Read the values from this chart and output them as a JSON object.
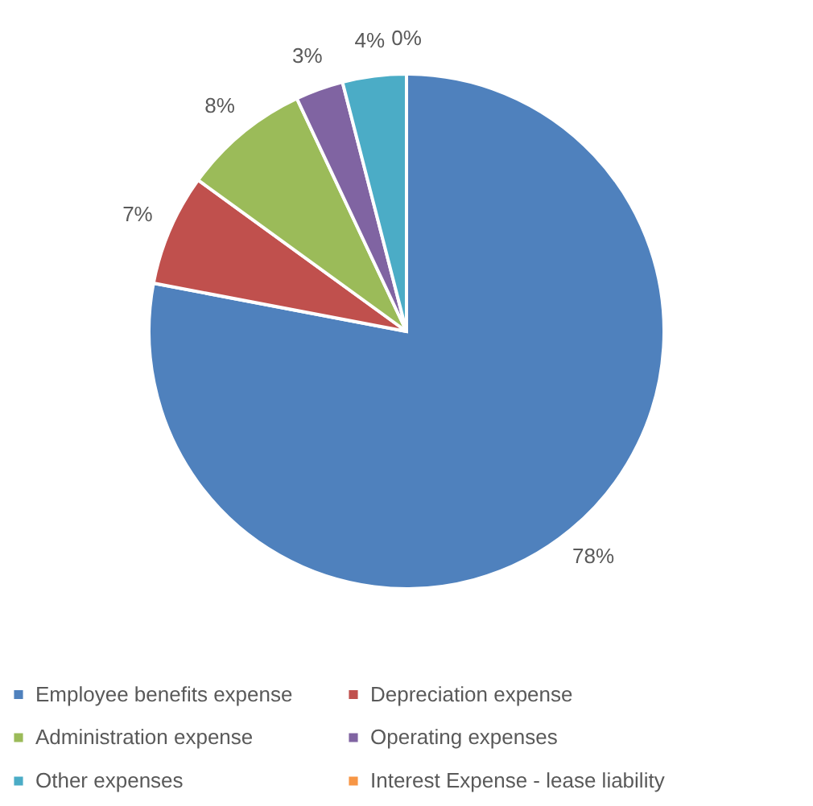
{
  "chart_data": {
    "type": "pie",
    "categories": [
      "Employee benefits expense",
      "Depreciation expense",
      "Administration expense",
      "Operating expenses",
      "Other expenses",
      "Interest Expense - lease liability"
    ],
    "values": [
      78,
      7,
      8,
      3,
      4,
      0
    ],
    "colors": [
      "#4f81bd",
      "#c0504d",
      "#9bbb59",
      "#8064a2",
      "#4bacc6",
      "#f79646"
    ],
    "value_labels": [
      "78%",
      "7%",
      "8%",
      "3%",
      "4%",
      "0%"
    ],
    "legend": "bottom"
  }
}
